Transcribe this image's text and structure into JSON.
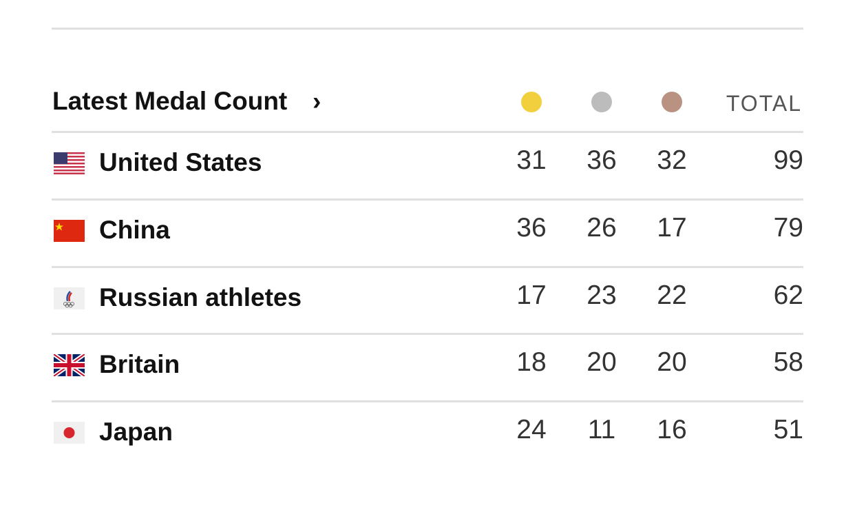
{
  "header": {
    "title": "Latest Medal Count",
    "arrow": "›",
    "total_label": "TOTAL"
  },
  "table": {
    "rows": [
      [
        "United States",
        31,
        36,
        32,
        99
      ],
      [
        "China",
        36,
        26,
        17,
        79
      ],
      [
        "Russian athletes",
        17,
        23,
        22,
        62
      ],
      [
        "Britain",
        18,
        20,
        20,
        58
      ],
      [
        "Japan",
        24,
        11,
        16,
        51
      ]
    ]
  }
}
